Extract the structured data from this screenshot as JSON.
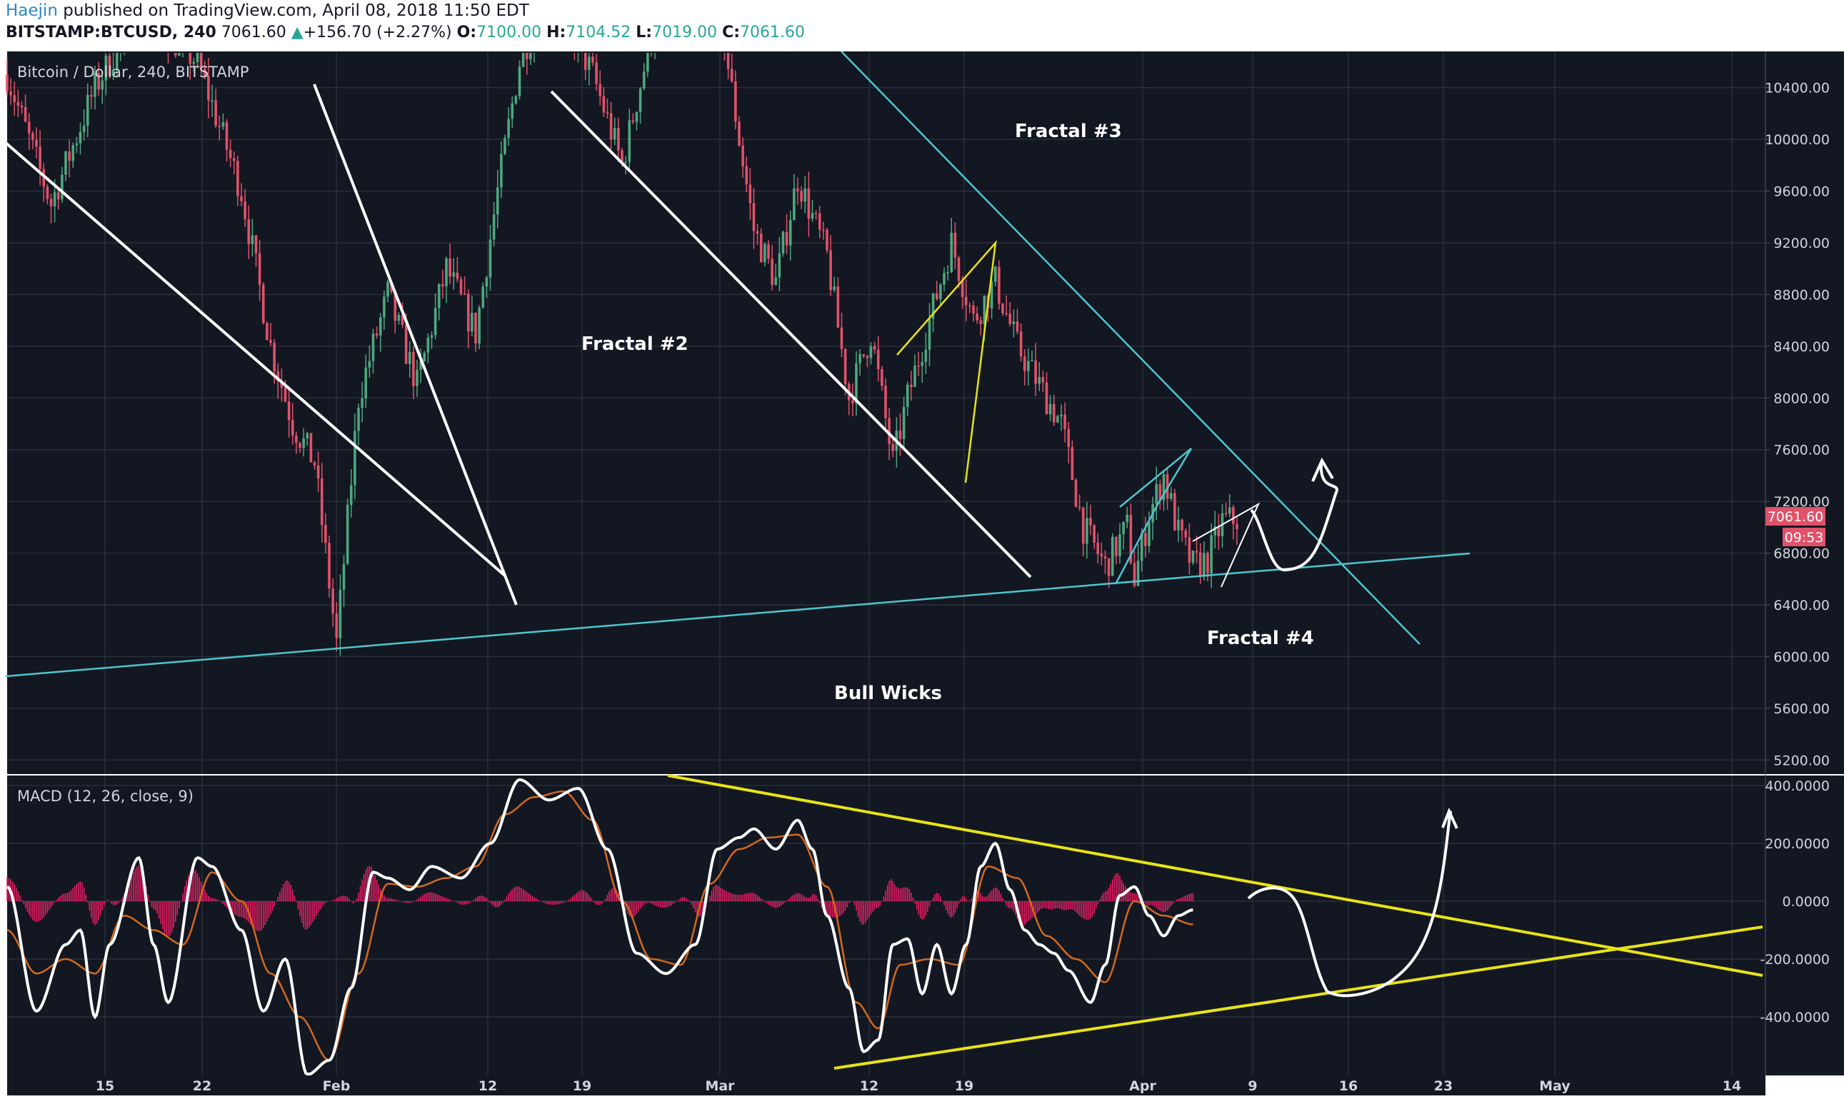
{
  "header": {
    "author": "Haejin",
    "published_text": "published on TradingView.com, April 08, 2018 11:50 EDT",
    "symbol": "BITSTAMP:BTCUSD, 240",
    "last_price": "7061.60",
    "change": "+156.70 (+2.27%)",
    "o_label": "O:",
    "o_value": "7100.00",
    "h_label": "H:",
    "h_value": "7104.52",
    "l_label": "L:",
    "l_value": "7019.00",
    "c_label": "C:",
    "c_value": "7061.60"
  },
  "colors": {
    "background": "#131722",
    "grid": "#2a2e39",
    "candle_up": "#4ea77f",
    "candle_down": "#e0526a",
    "trend_white": "#ffffff",
    "trend_cyan": "#4dc6d0",
    "trend_yellow": "#e8e317",
    "macd_line": "#ffffff",
    "signal_line": "#d2691e",
    "histogram": "#e91e63",
    "price_tag": "#e0526a"
  },
  "chart_data": [
    {
      "type": "candlestick",
      "title": "Bitcoin / Dollar, 240, BITSTAMP",
      "ylim": [
        5000,
        10700
      ],
      "y_ticks": [
        "10400.00",
        "10000.00",
        "9600.00",
        "9200.00",
        "8800.00",
        "8400.00",
        "8000.00",
        "7600.00",
        "7200.00",
        "6800.00",
        "6400.00",
        "6000.00",
        "5600.00",
        "5200.00"
      ],
      "x_tick_labels": [
        "15",
        "22",
        "Feb",
        "12",
        "19",
        "Mar",
        "12",
        "19",
        "Apr",
        "9",
        "16",
        "23",
        "May",
        "14"
      ],
      "last_price_tag": "7061.60",
      "countdown_tag": "09:53",
      "annotations": [
        "Fractal #3",
        "Fractal #2",
        "Fractal #4",
        "Bull Wicks"
      ],
      "price_path": [
        {
          "t": 0,
          "p": 10500
        },
        {
          "t": 3,
          "p": 9500
        },
        {
          "t": 6,
          "p": 10400
        },
        {
          "t": 9,
          "p": 11000
        },
        {
          "t": 13,
          "p": 10600
        },
        {
          "t": 16,
          "p": 9600
        },
        {
          "t": 18,
          "p": 8400
        },
        {
          "t": 19.5,
          "p": 7800
        },
        {
          "t": 21,
          "p": 7500
        },
        {
          "t": 22.5,
          "p": 6100
        },
        {
          "t": 24,
          "p": 8000
        },
        {
          "t": 26,
          "p": 8800
        },
        {
          "t": 28,
          "p": 8100
        },
        {
          "t": 30,
          "p": 9000
        },
        {
          "t": 32,
          "p": 8500
        },
        {
          "t": 33.5,
          "p": 9600
        },
        {
          "t": 35,
          "p": 10600
        },
        {
          "t": 37,
          "p": 11200
        },
        {
          "t": 40,
          "p": 10500
        },
        {
          "t": 42,
          "p": 9800
        },
        {
          "t": 44,
          "p": 10800
        },
        {
          "t": 46,
          "p": 11400
        },
        {
          "t": 47,
          "p": 10900
        },
        {
          "t": 48,
          "p": 11500
        },
        {
          "t": 50,
          "p": 10000
        },
        {
          "t": 51,
          "p": 9300
        },
        {
          "t": 52.5,
          "p": 8900
        },
        {
          "t": 54,
          "p": 9700
        },
        {
          "t": 56,
          "p": 9100
        },
        {
          "t": 57.5,
          "p": 8000
        },
        {
          "t": 59,
          "p": 8500
        },
        {
          "t": 60.5,
          "p": 7500
        },
        {
          "t": 61.5,
          "p": 8000
        },
        {
          "t": 63,
          "p": 8600
        },
        {
          "t": 64.5,
          "p": 9200
        },
        {
          "t": 66,
          "p": 8600
        },
        {
          "t": 67.5,
          "p": 8900
        },
        {
          "t": 69,
          "p": 8400
        },
        {
          "t": 70.5,
          "p": 8100
        },
        {
          "t": 72,
          "p": 7800
        },
        {
          "t": 73.5,
          "p": 7000
        },
        {
          "t": 75,
          "p": 6700
        },
        {
          "t": 76.5,
          "p": 7000
        },
        {
          "t": 77,
          "p": 6600
        },
        {
          "t": 78,
          "p": 7100
        },
        {
          "t": 79,
          "p": 7400
        },
        {
          "t": 80,
          "p": 6950
        },
        {
          "t": 81,
          "p": 6700
        },
        {
          "t": 82,
          "p": 6750
        },
        {
          "t": 83,
          "p": 7050
        },
        {
          "t": 84,
          "p": 7060
        }
      ]
    },
    {
      "type": "line",
      "title": "MACD (12, 26, close, 9)",
      "ylim": [
        -500,
        420
      ],
      "y_ticks": [
        "400.0000",
        "200.0000",
        "0.0000",
        "-200.0000",
        "-400.0000"
      ],
      "series": [
        {
          "name": "MACD",
          "points": [
            {
              "t": 0,
              "v": 50
            },
            {
              "t": 2,
              "v": -380
            },
            {
              "t": 4,
              "v": -150
            },
            {
              "t": 5,
              "v": -100
            },
            {
              "t": 6,
              "v": -400
            },
            {
              "t": 7,
              "v": -150
            },
            {
              "t": 9,
              "v": 150
            },
            {
              "t": 10,
              "v": -150
            },
            {
              "t": 11,
              "v": -350
            },
            {
              "t": 13,
              "v": 150
            },
            {
              "t": 14,
              "v": 120
            },
            {
              "t": 16,
              "v": -100
            },
            {
              "t": 17.5,
              "v": -380
            },
            {
              "t": 19,
              "v": -200
            },
            {
              "t": 20.5,
              "v": -600
            },
            {
              "t": 22,
              "v": -550
            },
            {
              "t": 23.5,
              "v": -300
            },
            {
              "t": 25,
              "v": 100
            },
            {
              "t": 26,
              "v": 80
            },
            {
              "t": 27.5,
              "v": 40
            },
            {
              "t": 29,
              "v": 120
            },
            {
              "t": 31,
              "v": 80
            },
            {
              "t": 33,
              "v": 200
            },
            {
              "t": 35,
              "v": 420
            },
            {
              "t": 37,
              "v": 350
            },
            {
              "t": 39,
              "v": 390
            },
            {
              "t": 41,
              "v": 180
            },
            {
              "t": 43,
              "v": -180
            },
            {
              "t": 45,
              "v": -250
            },
            {
              "t": 47,
              "v": -150
            },
            {
              "t": 48.5,
              "v": 180
            },
            {
              "t": 50,
              "v": 220
            },
            {
              "t": 51,
              "v": 250
            },
            {
              "t": 52.5,
              "v": 180
            },
            {
              "t": 54,
              "v": 280
            },
            {
              "t": 55,
              "v": 180
            },
            {
              "t": 56,
              "v": -50
            },
            {
              "t": 57.5,
              "v": -300
            },
            {
              "t": 58.5,
              "v": -520
            },
            {
              "t": 59.5,
              "v": -480
            },
            {
              "t": 60.5,
              "v": -150
            },
            {
              "t": 61.5,
              "v": -130
            },
            {
              "t": 62.5,
              "v": -320
            },
            {
              "t": 63.5,
              "v": -150
            },
            {
              "t": 64.5,
              "v": -320
            },
            {
              "t": 65.5,
              "v": -150
            },
            {
              "t": 66.5,
              "v": 120
            },
            {
              "t": 67.5,
              "v": 200
            },
            {
              "t": 68.5,
              "v": 40
            },
            {
              "t": 69.5,
              "v": -100
            },
            {
              "t": 70.5,
              "v": -150
            },
            {
              "t": 71.5,
              "v": -180
            },
            {
              "t": 72.5,
              "v": -240
            },
            {
              "t": 74,
              "v": -350
            },
            {
              "t": 75,
              "v": -220
            },
            {
              "t": 76,
              "v": 20
            },
            {
              "t": 77,
              "v": 50
            },
            {
              "t": 78,
              "v": -50
            },
            {
              "t": 79,
              "v": -120
            },
            {
              "t": 80,
              "v": -50
            },
            {
              "t": 81,
              "v": -30
            }
          ]
        },
        {
          "name": "Signal",
          "points": [
            {
              "t": 0,
              "v": -100
            },
            {
              "t": 2,
              "v": -250
            },
            {
              "t": 4,
              "v": -200
            },
            {
              "t": 6,
              "v": -250
            },
            {
              "t": 8,
              "v": -50
            },
            {
              "t": 10,
              "v": -100
            },
            {
              "t": 12,
              "v": -150
            },
            {
              "t": 14,
              "v": 100
            },
            {
              "t": 16,
              "v": 0
            },
            {
              "t": 18,
              "v": -250
            },
            {
              "t": 20,
              "v": -400
            },
            {
              "t": 22,
              "v": -550
            },
            {
              "t": 24,
              "v": -250
            },
            {
              "t": 26,
              "v": 60
            },
            {
              "t": 28,
              "v": 50
            },
            {
              "t": 30,
              "v": 80
            },
            {
              "t": 32,
              "v": 120
            },
            {
              "t": 34,
              "v": 300
            },
            {
              "t": 36,
              "v": 360
            },
            {
              "t": 38,
              "v": 380
            },
            {
              "t": 40,
              "v": 280
            },
            {
              "t": 42,
              "v": 0
            },
            {
              "t": 44,
              "v": -200
            },
            {
              "t": 46,
              "v": -220
            },
            {
              "t": 48,
              "v": 60
            },
            {
              "t": 50,
              "v": 180
            },
            {
              "t": 52,
              "v": 220
            },
            {
              "t": 54,
              "v": 230
            },
            {
              "t": 56,
              "v": 50
            },
            {
              "t": 58,
              "v": -350
            },
            {
              "t": 59.5,
              "v": -440
            },
            {
              "t": 61,
              "v": -220
            },
            {
              "t": 63,
              "v": -200
            },
            {
              "t": 65,
              "v": -220
            },
            {
              "t": 67,
              "v": 120
            },
            {
              "t": 69,
              "v": 80
            },
            {
              "t": 71,
              "v": -120
            },
            {
              "t": 73,
              "v": -200
            },
            {
              "t": 75,
              "v": -280
            },
            {
              "t": 77,
              "v": 0
            },
            {
              "t": 79,
              "v": -50
            },
            {
              "t": 81,
              "v": -80
            }
          ]
        }
      ]
    }
  ]
}
